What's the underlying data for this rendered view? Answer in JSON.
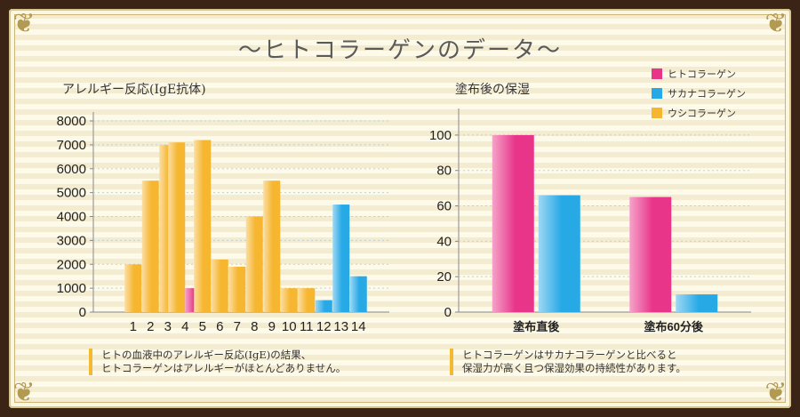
{
  "page": {
    "title": "〜ヒトコラーゲンのデータ〜"
  },
  "colors": {
    "pink": "#e8358a",
    "blue": "#27a9e6",
    "orange": "#f6b630"
  },
  "chart_data": [
    {
      "type": "bar",
      "title": "アレルギー反応(IgE抗体)",
      "categories": [
        "1",
        "2",
        "3",
        "4",
        "5",
        "6",
        "7",
        "8",
        "9",
        "10",
        "11",
        "12",
        "13",
        "14"
      ],
      "series": [
        {
          "name": "ウシコラーゲン",
          "color": "orange",
          "values": [
            2000,
            5500,
            7000,
            7100,
            7200,
            2200,
            1900,
            4000,
            5500,
            1000,
            1000,
            null,
            null,
            null
          ]
        },
        {
          "name": "ヒトコラーゲン",
          "color": "pink",
          "values": [
            null,
            null,
            null,
            1000,
            null,
            null,
            null,
            null,
            null,
            null,
            null,
            null,
            null,
            null
          ]
        },
        {
          "name": "サカナコラーゲン",
          "color": "blue",
          "values": [
            null,
            null,
            null,
            null,
            null,
            null,
            null,
            null,
            null,
            null,
            null,
            500,
            4500,
            1500
          ]
        }
      ],
      "yticks": [
        "0",
        "1000",
        "2000",
        "3000",
        "4000",
        "5000",
        "6000",
        "7000",
        "8000"
      ],
      "ylim": [
        0,
        8000
      ],
      "grid": true,
      "note": [
        "ヒトの血液中のアレルギー反応(IgE)の結果、",
        "ヒトコラーゲンはアレルギーがほとんどありません。"
      ]
    },
    {
      "type": "bar",
      "title": "塗布後の保湿",
      "categories": [
        "塗布直後",
        "塗布60分後"
      ],
      "series": [
        {
          "name": "ヒトコラーゲン",
          "color": "pink",
          "values": [
            100,
            65
          ]
        },
        {
          "name": "サカナコラーゲン",
          "color": "blue",
          "values": [
            66,
            10
          ]
        }
      ],
      "yticks": [
        "0",
        "20",
        "40",
        "60",
        "80",
        "100"
      ],
      "ylim": [
        0,
        110
      ],
      "grid": true,
      "legend": {
        "placement": "top-right",
        "items": [
          {
            "label": "ヒトコラーゲン",
            "color": "pink"
          },
          {
            "label": "サカナコラーゲン",
            "color": "blue"
          },
          {
            "label": "ウシコラーゲン",
            "color": "orange"
          }
        ]
      },
      "note": [
        "ヒトコラーゲンはサカナコラーゲンと比べると",
        "保湿力が高く且つ保湿効果の持続性があります。"
      ]
    }
  ]
}
